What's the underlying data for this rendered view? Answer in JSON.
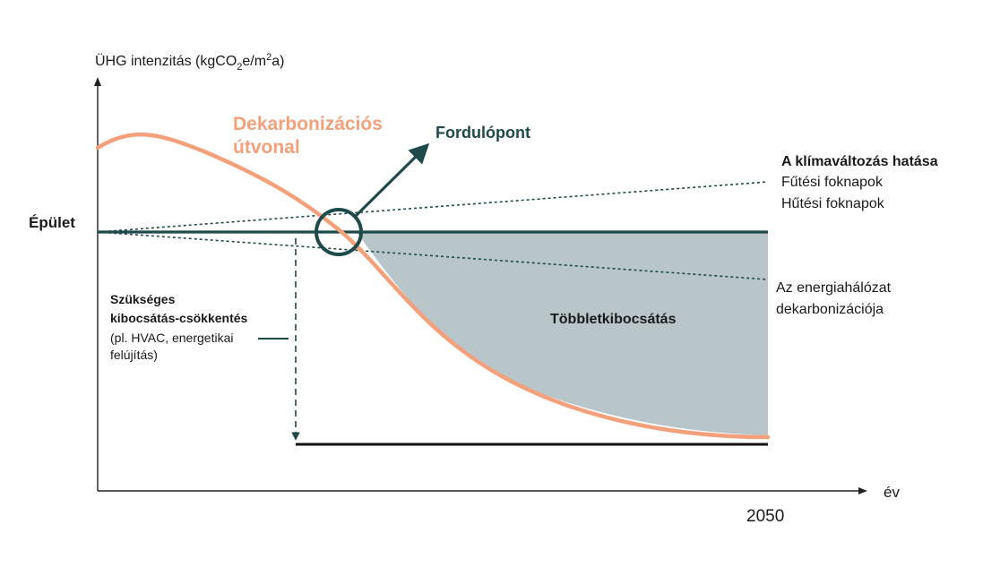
{
  "yaxis": {
    "prefix": "ÜHG intenzitás (kgCO",
    "sub": "2",
    "middle": "e/m",
    "sup": "2",
    "suffix": "a)"
  },
  "xaxis": {
    "label": "év",
    "year": "2050"
  },
  "building_label": "Épület",
  "pathway": {
    "line1": "Dekarbonizációs",
    "line2": "útvonal",
    "color": "#f4a07a"
  },
  "turning_point": {
    "label": "Fordulópont",
    "color": "#1e4a4a"
  },
  "climate": {
    "title": "A klímaváltozás hatása",
    "line1": "Fűtési foknapok",
    "line2": "Hűtési foknapok"
  },
  "grid_decarb": {
    "line1": "Az energiahálózat",
    "line2": "dekarbonizációja"
  },
  "excess_label": "Többletkibocsátás",
  "required": {
    "line1": "Szükséges",
    "line2": "kibocsátás-csökkentés",
    "line3": "(pl. HVAC, energetikai",
    "line4": "felújítás)"
  },
  "colors": {
    "teal": "#1e4a4a",
    "fill": "#b8c6c9",
    "axis": "#222222"
  }
}
